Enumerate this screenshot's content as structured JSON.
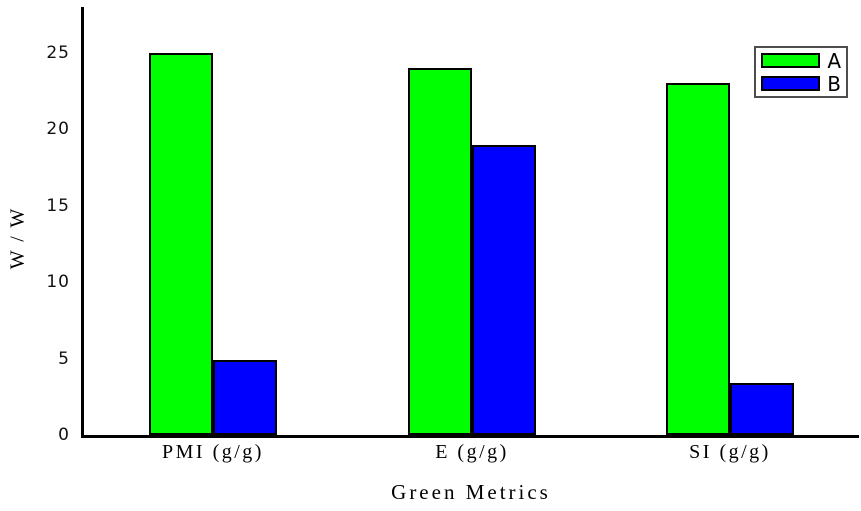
{
  "chart_data": {
    "type": "bar",
    "categories": [
      "PMI (g/g)",
      "E (g/g)",
      "SI (g/g)"
    ],
    "series": [
      {
        "name": "A",
        "color": "#00ff00",
        "values": [
          25,
          24,
          23
        ]
      },
      {
        "name": "B",
        "color": "#0000ff",
        "values": [
          4.9,
          19,
          3.4
        ]
      }
    ],
    "title": "",
    "xlabel": "Green Metrics",
    "ylabel": "W / W",
    "yticks": [
      0,
      5,
      10,
      15,
      20,
      25
    ],
    "ylim": [
      0,
      28
    ],
    "grid": false,
    "legend_position": "top-right",
    "axis_color": "#000000",
    "background_color": "#ffffff"
  }
}
